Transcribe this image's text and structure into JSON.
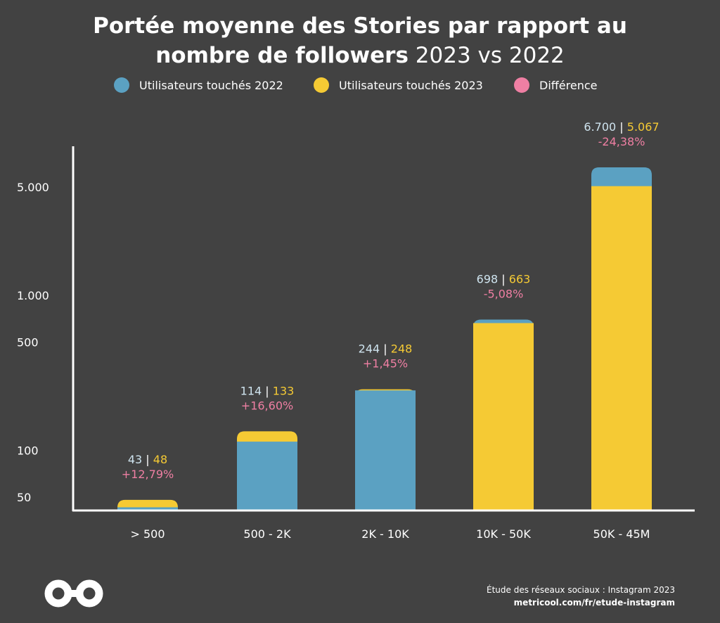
{
  "title": {
    "line1": "Portée moyenne des Stories par rapport au",
    "line2_bold": "nombre de followers",
    "line2_light": "2023 vs 2022"
  },
  "legend": [
    {
      "label": "Utilisateurs touchés 2022",
      "color": "#5ba1c2"
    },
    {
      "label": "Utilisateurs touchés 2023",
      "color": "#f5ca34"
    },
    {
      "label": "Différence",
      "color": "#ef7fa3"
    }
  ],
  "colors": {
    "background": "#424242",
    "series_2022": "#5ba1c2",
    "series_2023": "#f5ca34",
    "difference": "#ef7fa3",
    "label_2022": "#cfe4ef",
    "axis": "#ffffff"
  },
  "chart_data": {
    "type": "bar",
    "scale": "log",
    "categories": [
      "> 500",
      "500 - 2K",
      "2K - 10K",
      "10K - 50K",
      "50K - 45M"
    ],
    "series": [
      {
        "name": "Utilisateurs touchés 2022",
        "values": [
          43,
          114,
          244,
          698,
          6700
        ]
      },
      {
        "name": "Utilisateurs touchés 2023",
        "values": [
          48,
          133,
          248,
          663,
          5067
        ]
      }
    ],
    "value_labels_2022": [
      "43",
      "114",
      "244",
      "698",
      "6.700"
    ],
    "value_labels_2023": [
      "48",
      "133",
      "248",
      "663",
      "5.067"
    ],
    "difference_labels": [
      "+12,79%",
      "+16,60%",
      "+1,45%",
      "-5,08%",
      "-24,38%"
    ],
    "yticks": [
      50,
      100,
      500,
      1000,
      5000
    ],
    "ytick_labels": [
      "50",
      "100",
      "500",
      "1.000",
      "5.000"
    ],
    "ylim": [
      30,
      10000
    ],
    "legend_position": "top-center"
  },
  "footer": {
    "source": "Étude des réseaux sociaux : Instagram 2023",
    "url": "metricool.com/fr/etude-instagram"
  },
  "logo": {
    "icon": "metricool-infinity-logo"
  }
}
